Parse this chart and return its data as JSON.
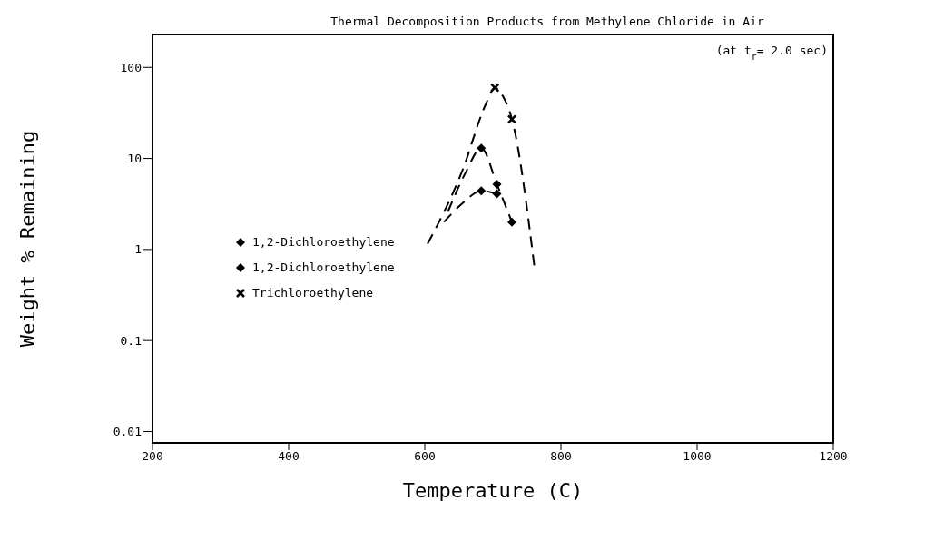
{
  "chart_data": {
    "type": "scatter",
    "title": "Thermal Decomposition Products from Methylene Chloride in Air",
    "xlabel": "Temperature (C)",
    "ylabel": "Weight % Remaining",
    "annotations": [
      "(at t̄$_{r}$= 2.0 sec)"
    ],
    "log": "y",
    "xlim": [
      200,
      1200
    ],
    "ylim": [
      0.0075,
      230
    ],
    "xticks": [
      200,
      400,
      600,
      800,
      1000,
      1200
    ],
    "yticks": [
      0.01,
      0.1,
      1,
      10,
      100
    ],
    "legend": "left",
    "series": [
      {
        "name": "1,2-Dichloroethylene",
        "color": "#000000",
        "marker": "diamond",
        "x": [
          683,
          706,
          728
        ],
        "values": [
          13,
          5.2,
          2.0
        ]
      },
      {
        "name": "1,2-Dichloroethylene",
        "color": "#000000",
        "marker": "diamond",
        "x": [
          683,
          706
        ],
        "values": [
          4.4,
          4.1
        ]
      },
      {
        "name": "Trichloroethylene",
        "color": "#000000",
        "marker": "cross",
        "x": [
          703,
          728
        ],
        "values": [
          60,
          27
        ]
      },
      {
        "type": "line",
        "color": "#000000",
        "line_style": "dashed",
        "marker": "none",
        "x": [
          604,
          655,
          690,
          703,
          715,
          728,
          761
        ],
        "values": [
          1.15,
          7.3,
          40,
          60,
          48,
          27,
          0.65
        ]
      },
      {
        "type": "line",
        "color": "#000000",
        "line_style": "dashed",
        "marker": "none",
        "x": [
          634,
          660,
          683,
          706,
          728
        ],
        "values": [
          2.6,
          7,
          13,
          5.2,
          2.0
        ]
      },
      {
        "type": "line",
        "color": "#000000",
        "line_style": "dashed",
        "marker": "none",
        "x": [
          628,
          655,
          683,
          706
        ],
        "values": [
          2.0,
          3.2,
          4.4,
          4.1
        ]
      }
    ]
  }
}
